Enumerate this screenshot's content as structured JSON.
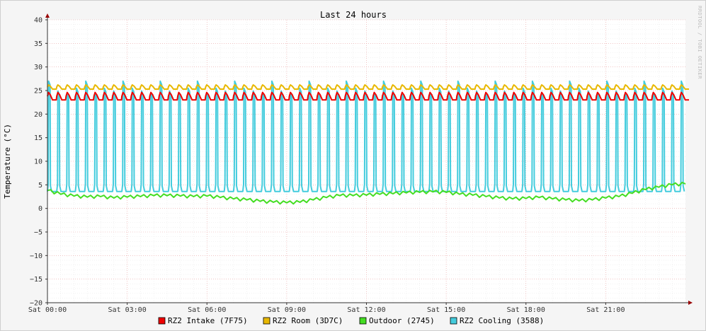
{
  "chart_data": {
    "type": "line",
    "title": "Last 24 hours",
    "ylabel": "Temperature (°C)",
    "watermark": "RRDTOOL / TOBI OETIKER",
    "ylim": [
      -20,
      40
    ],
    "yticks": [
      40,
      35,
      30,
      25,
      20,
      15,
      10,
      5,
      0,
      -5,
      -10,
      -15,
      -20
    ],
    "xlim_hours": [
      0,
      24
    ],
    "xticks": [
      {
        "hour": 0,
        "label": "Sat 00:00"
      },
      {
        "hour": 3,
        "label": "Sat 03:00"
      },
      {
        "hour": 6,
        "label": "Sat 06:00"
      },
      {
        "hour": 9,
        "label": "Sat 09:00"
      },
      {
        "hour": 12,
        "label": "Sat 12:00"
      },
      {
        "hour": 15,
        "label": "Sat 15:00"
      },
      {
        "hour": 18,
        "label": "Sat 18:00"
      },
      {
        "hour": 21,
        "label": "Sat 21:00"
      }
    ],
    "grid": true,
    "legend_position": "bottom",
    "series": [
      {
        "name": "RZ2 Intake (7F75)",
        "color": "#ee0000",
        "kind": "sawtooth",
        "cycle_hours": 0.35,
        "low": 23.0,
        "high": 24.6
      },
      {
        "name": "RZ2 Room (3D7C)",
        "color": "#e8b800",
        "kind": "sawtooth",
        "cycle_hours": 0.35,
        "low": 25.3,
        "high": 26.2
      },
      {
        "name": "Outdoor (2745)",
        "color": "#44dd22",
        "kind": "line",
        "x": [
          0,
          0.5,
          1,
          1.5,
          2,
          2.5,
          3,
          3.5,
          4,
          4.5,
          5,
          5.5,
          6,
          6.5,
          7,
          7.5,
          8,
          8.5,
          9,
          9.5,
          10,
          10.5,
          11,
          11.5,
          12,
          12.5,
          13,
          13.5,
          14,
          14.5,
          15,
          15.5,
          16,
          16.5,
          17,
          17.5,
          18,
          18.5,
          19,
          19.5,
          20,
          20.5,
          21,
          21.5,
          22,
          22.5,
          23,
          23.5,
          24
        ],
        "y": [
          3.8,
          3.0,
          2.6,
          2.4,
          2.5,
          2.2,
          2.4,
          2.5,
          2.7,
          2.7,
          2.6,
          2.5,
          2.6,
          2.3,
          2.0,
          1.8,
          1.5,
          1.3,
          1.2,
          1.3,
          1.8,
          2.3,
          2.7,
          2.7,
          2.8,
          3.0,
          3.1,
          3.3,
          3.4,
          3.5,
          3.4,
          3.0,
          2.8,
          2.5,
          2.2,
          2.0,
          2.1,
          2.3,
          2.0,
          1.8,
          1.6,
          1.8,
          2.2,
          2.5,
          3.2,
          4.0,
          4.5,
          5.0,
          5.2
        ]
      },
      {
        "name": "RZ2 Cooling (3588)",
        "color": "#44ccdd",
        "kind": "pulse",
        "cycle_hours": 0.35,
        "low": 3.6,
        "high": 25.5,
        "peak": 27.0
      }
    ]
  }
}
